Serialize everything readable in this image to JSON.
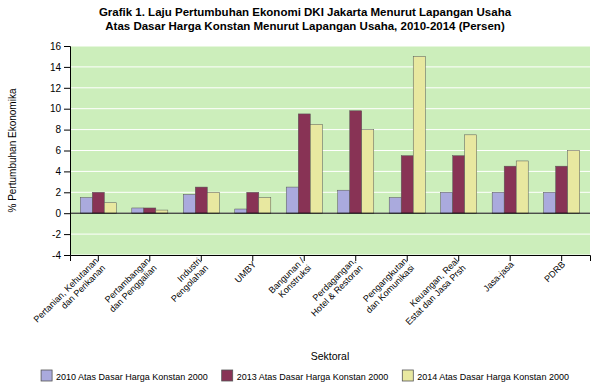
{
  "chart_data": {
    "type": "bar",
    "title": "Grafik 1. Laju Pertumbuhan Ekonomi DKI Jakarta Menurut Lapangan Usaha\nAtas Dasar Harga Konstan Menurut Lapangan Usaha, 2010-2014 (Persen)",
    "categories": [
      "Pertanian, Kehutanan\ndan Perikanan",
      "Pertambangan\ndan Penggalian",
      "Industri\nPengolahan",
      "UMBY",
      "Bangunan /\nKonstruksi",
      "Perdagangan,\nHotel & Restoran",
      "Pengangkutan\ndan Komunikasi",
      "Keuangan, Real\nEstat dan Jasa Prsh",
      "Jasa-jasa",
      "PDRB"
    ],
    "series": [
      {
        "name": "2010 Atas Dasar Harga Konstan 2000",
        "color": "#aaaadd",
        "values": [
          1.5,
          0.5,
          1.8,
          0.4,
          2.5,
          2.2,
          1.5,
          2.0,
          2.0,
          2.0
        ]
      },
      {
        "name": "2013 Atas Dasar Harga Konstan 2000",
        "color": "#883355",
        "values": [
          2.0,
          0.5,
          2.5,
          2.0,
          9.5,
          9.8,
          5.5,
          5.5,
          4.5,
          4.5
        ]
      },
      {
        "name": "2014 Atas Dasar Harga Konstan 2000",
        "color": "#e8e8a0",
        "values": [
          1.0,
          0.3,
          2.0,
          1.5,
          8.5,
          8.0,
          15.0,
          7.5,
          5.0,
          6.0
        ]
      }
    ],
    "ylabel": "% Pertumbuhan Ekonomika",
    "xlabel": "Sektoral",
    "ylim": [
      -4,
      16
    ],
    "yticks": [
      -4,
      -2,
      0,
      2,
      4,
      6,
      8,
      10,
      12,
      14,
      16
    ],
    "grid": true,
    "legend": "bottom"
  }
}
